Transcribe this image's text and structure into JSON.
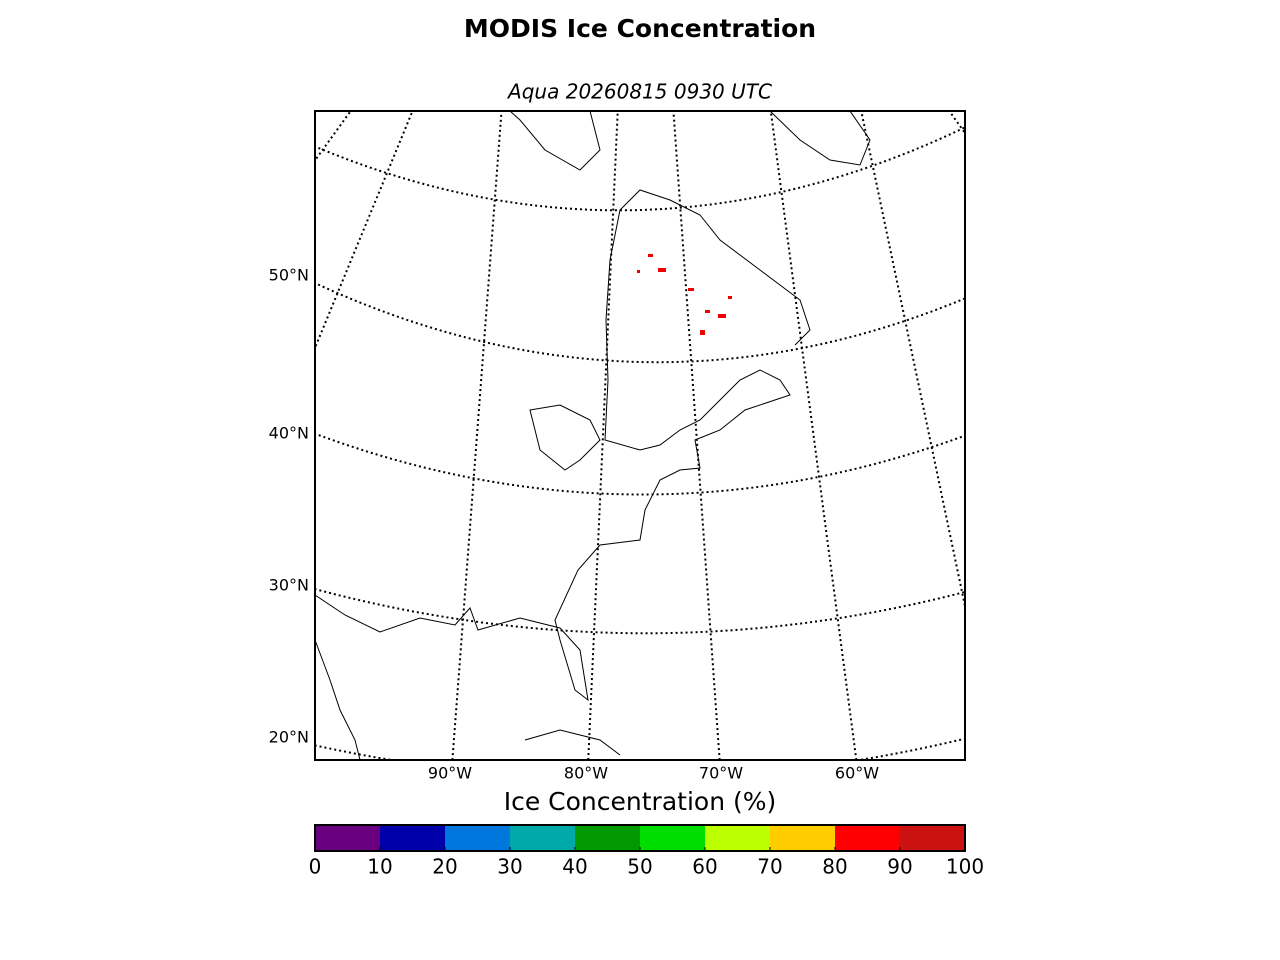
{
  "header": {
    "title": "MODIS Ice Concentration",
    "subtitle": "Aqua 20260815 0930 UTC"
  },
  "map": {
    "lat_labels": [
      "50°N",
      "40°N",
      "30°N",
      "20°N"
    ],
    "lon_labels": [
      "90°W",
      "80°W",
      "70°W",
      "60°W"
    ]
  },
  "colorbar": {
    "label": "Ice Concentration (%)",
    "range": [
      0,
      100
    ],
    "ticks": [
      0,
      10,
      20,
      30,
      40,
      50,
      60,
      70,
      80,
      90,
      100
    ],
    "colors": [
      "#6a0080",
      "#0000aa",
      "#0077dd",
      "#00aaaa",
      "#009900",
      "#00dd00",
      "#bbff00",
      "#ffcc00",
      "#ff0000",
      "#cc1111"
    ]
  }
}
